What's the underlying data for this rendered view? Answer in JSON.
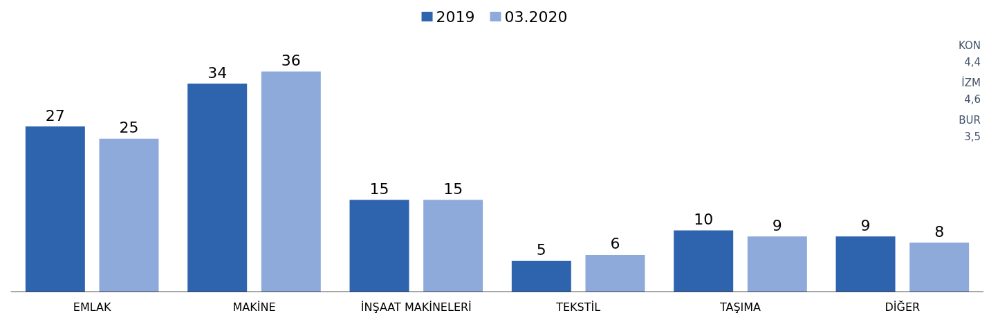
{
  "chart_data": {
    "type": "bar",
    "categories": [
      "EMLAK",
      "MAKİNE",
      "İNŞAAT MAKİNELERİ",
      "TEKSTİL",
      "TAŞIMA",
      "DİĞER"
    ],
    "series": [
      {
        "name": "2019",
        "color": "#2e64ae",
        "values": [
          27,
          34,
          15,
          5,
          10,
          9
        ]
      },
      {
        "name": "03.2020",
        "color": "#8eaadb",
        "values": [
          25,
          36,
          15,
          6,
          9,
          8
        ]
      }
    ],
    "data_labels": true,
    "legend": "top",
    "grid": false,
    "annotations": [
      "KON",
      "4,4",
      "İZM",
      "4,6",
      "BUR",
      "3,5"
    ]
  }
}
